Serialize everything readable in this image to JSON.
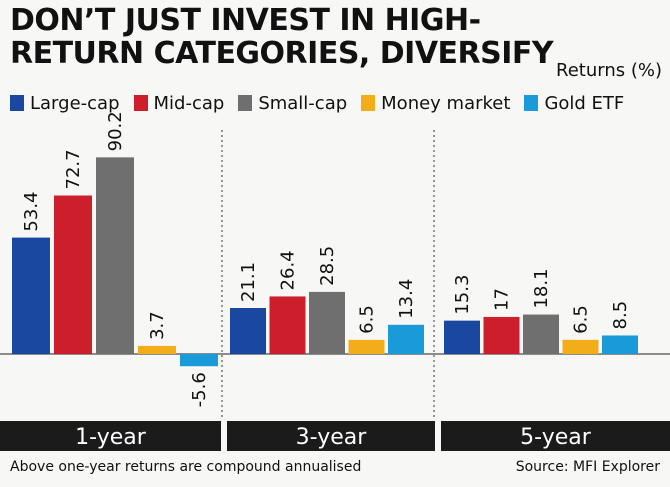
{
  "title": "DON’T JUST INVEST IN HIGH-RETURN CATEGORIES, DIVERSIFY",
  "unit_label": "Returns (%)",
  "footnote": "Above one-year returns are compound annualised",
  "source": "Source: MFI Explorer",
  "colors": {
    "Large-cap": "#1a48a0",
    "Mid-cap": "#cc1f2b",
    "Small-cap": "#6f6f6f",
    "Money market": "#f2ad19",
    "Gold ETF": "#1a9ad8",
    "band": "#1b1b1b"
  },
  "chart_data": {
    "type": "bar",
    "title": "DON’T JUST INVEST IN HIGH-RETURN CATEGORIES, DIVERSIFY",
    "ylabel": "Returns (%)",
    "categories": [
      "1-year",
      "3-year",
      "5-year"
    ],
    "series": [
      {
        "name": "Large-cap",
        "values": [
          53.4,
          21.1,
          15.3
        ]
      },
      {
        "name": "Mid-cap",
        "values": [
          72.7,
          26.4,
          17
        ]
      },
      {
        "name": "Small-cap",
        "values": [
          90.2,
          28.5,
          18.1
        ]
      },
      {
        "name": "Money market",
        "values": [
          3.7,
          6.5,
          6.5
        ]
      },
      {
        "name": "Gold ETF",
        "values": [
          -5.6,
          13.4,
          8.5
        ]
      }
    ],
    "ylim": [
      -6,
      93
    ],
    "grid": false,
    "legend": "top-left"
  }
}
